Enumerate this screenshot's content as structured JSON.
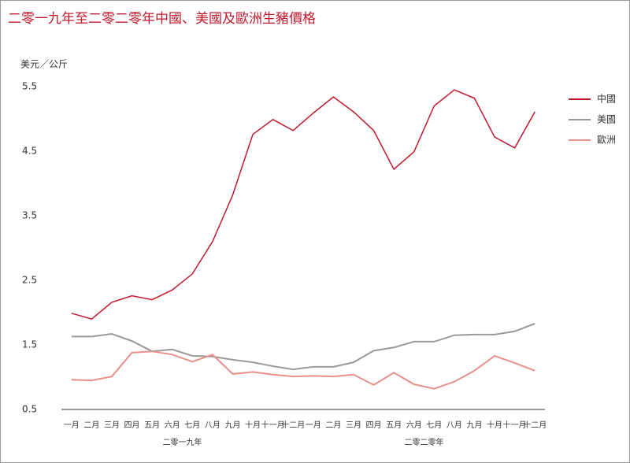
{
  "chart_data": {
    "type": "line",
    "title": "二零一九年至二零二零年中國、美國及歐洲生豬價格",
    "y_axis_label": "美元／公斤",
    "categories": [
      "一月",
      "二月",
      "三月",
      "四月",
      "五月",
      "六月",
      "七月",
      "八月",
      "九月",
      "十月",
      "十一月",
      "十二月",
      "一月",
      "二月",
      "三月",
      "四月",
      "五月",
      "六月",
      "七月",
      "八月",
      "九月",
      "十月",
      "十一月",
      "十二月"
    ],
    "x_groups": [
      "二零一九年",
      "二零二零年"
    ],
    "series": [
      {
        "name": "中國",
        "color": "#c0192e",
        "values": [
          1.99,
          1.9,
          2.16,
          2.26,
          2.2,
          2.35,
          2.6,
          3.1,
          3.82,
          4.76,
          4.99,
          4.82,
          5.09,
          5.34,
          5.11,
          4.82,
          4.22,
          4.49,
          5.2,
          5.45,
          5.32,
          4.72,
          4.55,
          5.11
        ]
      },
      {
        "name": "美國",
        "color": "#999999",
        "values": [
          1.63,
          1.63,
          1.67,
          1.56,
          1.4,
          1.43,
          1.33,
          1.32,
          1.27,
          1.23,
          1.17,
          1.12,
          1.16,
          1.16,
          1.23,
          1.41,
          1.46,
          1.55,
          1.55,
          1.65,
          1.66,
          1.66,
          1.71,
          1.83
        ]
      },
      {
        "name": "歐洲",
        "color": "#e8908a",
        "values": [
          0.96,
          0.95,
          1.01,
          1.38,
          1.4,
          1.35,
          1.24,
          1.35,
          1.05,
          1.08,
          1.04,
          1.01,
          1.02,
          1.01,
          1.04,
          0.88,
          1.07,
          0.89,
          0.82,
          0.93,
          1.1,
          1.33,
          1.22,
          1.1
        ]
      }
    ],
    "ylim": [
      0.5,
      5.5
    ],
    "yticks": [
      0.5,
      1.5,
      2.5,
      3.5,
      4.5,
      5.5
    ],
    "grid": false,
    "legend": "right"
  }
}
